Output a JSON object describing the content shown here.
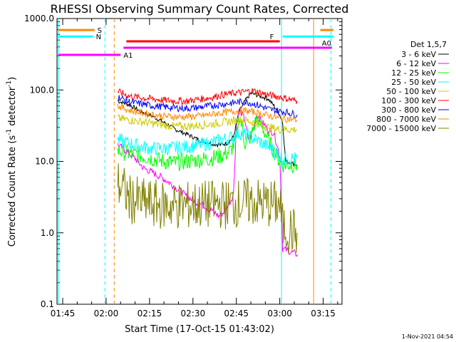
{
  "chart_data": {
    "type": "line",
    "title": "RHESSI Observing Summary Count Rates, Corrected",
    "ylabel_main": "Corrected Count Rate (s",
    "ylabel_sup1": "-1",
    "ylabel_mid": " detector",
    "ylabel_sup2": "-1",
    "ylabel_end": ")",
    "xlabel": "Start Time (17-Oct-15 01:43:02)",
    "footer_date": "1-Nov-2021 04:54",
    "y_scale": "log",
    "ylim": [
      0.1,
      1000
    ],
    "x_unit": "minutes after 01:40",
    "xlim": [
      3.03,
      101.5
    ],
    "ytick_labels": [
      "0.1",
      "1.0",
      "10.0",
      "100.0",
      "1000.0"
    ],
    "ytick_values": [
      0.1,
      1,
      10,
      100,
      1000
    ],
    "xtick_labels": [
      "01:45",
      "02:00",
      "02:15",
      "02:30",
      "02:45",
      "03:00",
      "03:15"
    ],
    "xtick_values": [
      5,
      20,
      35,
      50,
      65,
      80,
      95
    ],
    "legend_title": "Det 1,5,7",
    "series": [
      {
        "name": "3 - 6 keV",
        "color": "#000000",
        "points": [
          [
            24,
            70
          ],
          [
            28,
            62
          ],
          [
            32,
            50
          ],
          [
            36,
            43
          ],
          [
            40,
            35
          ],
          [
            44,
            28
          ],
          [
            48,
            24
          ],
          [
            52,
            20
          ],
          [
            56,
            18
          ],
          [
            59,
            17
          ],
          [
            62,
            18
          ],
          [
            64,
            22
          ],
          [
            66,
            50
          ],
          [
            68,
            70
          ],
          [
            70,
            90
          ],
          [
            72,
            85
          ],
          [
            74,
            80
          ],
          [
            76,
            75
          ],
          [
            78,
            60
          ],
          [
            80,
            45
          ],
          [
            81,
            35
          ],
          [
            82,
            10
          ],
          [
            86,
            9
          ]
        ]
      },
      {
        "name": "6 - 12 keV",
        "color": "#ff00ff",
        "points": [
          [
            24,
            17
          ],
          [
            27,
            14
          ],
          [
            30,
            11
          ],
          [
            33,
            8
          ],
          [
            36,
            7
          ],
          [
            39,
            6
          ],
          [
            42,
            5
          ],
          [
            45,
            4
          ],
          [
            48,
            3.2
          ],
          [
            51,
            2.7
          ],
          [
            54,
            2.4
          ],
          [
            57,
            2.0
          ],
          [
            59,
            1.7
          ],
          [
            61,
            2.0
          ],
          [
            62,
            2.4
          ],
          [
            63,
            2.8
          ],
          [
            64,
            3.5
          ],
          [
            65,
            30
          ],
          [
            66,
            55
          ],
          [
            67,
            45
          ],
          [
            68,
            38
          ],
          [
            69,
            20
          ],
          [
            70,
            22
          ],
          [
            72,
            45
          ],
          [
            74,
            35
          ],
          [
            76,
            28
          ],
          [
            78,
            25
          ],
          [
            80,
            12
          ],
          [
            81,
            0.6
          ],
          [
            86,
            0.5
          ]
        ]
      },
      {
        "name": "12 - 25 keV",
        "color": "#00ff00",
        "points": [
          [
            24,
            14
          ],
          [
            28,
            13
          ],
          [
            32,
            12
          ],
          [
            36,
            11
          ],
          [
            40,
            10
          ],
          [
            44,
            9.5
          ],
          [
            48,
            10
          ],
          [
            52,
            10.5
          ],
          [
            56,
            11
          ],
          [
            60,
            12
          ],
          [
            63,
            14
          ],
          [
            65,
            20
          ],
          [
            66,
            45
          ],
          [
            67,
            30
          ],
          [
            68,
            18
          ],
          [
            70,
            22
          ],
          [
            72,
            40
          ],
          [
            74,
            30
          ],
          [
            76,
            20
          ],
          [
            78,
            14
          ],
          [
            80,
            10
          ],
          [
            81,
            9
          ],
          [
            86,
            9
          ]
        ]
      },
      {
        "name": "25 - 50 keV",
        "color": "#00ffff",
        "points": [
          [
            24,
            20
          ],
          [
            28,
            18
          ],
          [
            32,
            16
          ],
          [
            36,
            15
          ],
          [
            40,
            15
          ],
          [
            44,
            15.5
          ],
          [
            48,
            16
          ],
          [
            52,
            17
          ],
          [
            56,
            18
          ],
          [
            60,
            20
          ],
          [
            64,
            22
          ],
          [
            66,
            25
          ],
          [
            68,
            24
          ],
          [
            70,
            22
          ],
          [
            72,
            20
          ],
          [
            74,
            18
          ],
          [
            76,
            16
          ],
          [
            78,
            14
          ],
          [
            80,
            12
          ],
          [
            81,
            11
          ],
          [
            86,
            11
          ]
        ]
      },
      {
        "name": "50 - 100 keV",
        "color": "#cccc00",
        "points": [
          [
            24,
            40
          ],
          [
            28,
            38
          ],
          [
            32,
            36
          ],
          [
            36,
            34
          ],
          [
            40,
            32
          ],
          [
            44,
            31
          ],
          [
            48,
            31
          ],
          [
            52,
            32
          ],
          [
            56,
            33
          ],
          [
            60,
            35
          ],
          [
            64,
            37
          ],
          [
            66,
            38
          ],
          [
            68,
            38
          ],
          [
            70,
            36
          ],
          [
            72,
            34
          ],
          [
            74,
            32
          ],
          [
            76,
            30
          ],
          [
            78,
            29
          ],
          [
            80,
            28
          ],
          [
            81,
            28
          ],
          [
            86,
            28
          ]
        ]
      },
      {
        "name": "100 - 300 keV",
        "color": "#ff0000",
        "points": [
          [
            24,
            95
          ],
          [
            28,
            82
          ],
          [
            32,
            78
          ],
          [
            36,
            75
          ],
          [
            40,
            72
          ],
          [
            44,
            70
          ],
          [
            48,
            70
          ],
          [
            52,
            74
          ],
          [
            56,
            78
          ],
          [
            60,
            85
          ],
          [
            64,
            90
          ],
          [
            66,
            92
          ],
          [
            68,
            94
          ],
          [
            70,
            98
          ],
          [
            72,
            95
          ],
          [
            74,
            90
          ],
          [
            76,
            85
          ],
          [
            78,
            82
          ],
          [
            80,
            80
          ],
          [
            81,
            78
          ],
          [
            86,
            70
          ]
        ]
      },
      {
        "name": "300 - 800 keV",
        "color": "#0000ff",
        "points": [
          [
            24,
            80
          ],
          [
            28,
            68
          ],
          [
            32,
            64
          ],
          [
            36,
            60
          ],
          [
            40,
            58
          ],
          [
            44,
            56
          ],
          [
            48,
            55
          ],
          [
            52,
            57
          ],
          [
            56,
            60
          ],
          [
            60,
            63
          ],
          [
            64,
            66
          ],
          [
            66,
            68
          ],
          [
            68,
            68
          ],
          [
            70,
            66
          ],
          [
            72,
            62
          ],
          [
            74,
            58
          ],
          [
            76,
            54
          ],
          [
            78,
            52
          ],
          [
            80,
            50
          ],
          [
            81,
            50
          ],
          [
            86,
            45
          ]
        ]
      },
      {
        "name": "800 - 7000 keV",
        "color": "#ff8800",
        "points": [
          [
            24,
            60
          ],
          [
            28,
            52
          ],
          [
            32,
            48
          ],
          [
            36,
            45
          ],
          [
            40,
            43
          ],
          [
            44,
            42
          ],
          [
            48,
            42
          ],
          [
            52,
            43
          ],
          [
            56,
            45
          ],
          [
            60,
            48
          ],
          [
            64,
            50
          ],
          [
            66,
            51
          ],
          [
            68,
            51
          ],
          [
            70,
            50
          ],
          [
            72,
            48
          ],
          [
            74,
            46
          ],
          [
            76,
            44
          ],
          [
            78,
            42
          ],
          [
            80,
            40
          ],
          [
            81,
            40
          ],
          [
            86,
            38
          ]
        ]
      },
      {
        "name": "7000 - 15000 keV",
        "color": "#808000",
        "points": [
          [
            24,
            5
          ],
          [
            26,
            4
          ],
          [
            28,
            3
          ],
          [
            30,
            2.8
          ],
          [
            34,
            2.6
          ],
          [
            40,
            2.4
          ],
          [
            48,
            2.4
          ],
          [
            56,
            2.5
          ],
          [
            62,
            2.5
          ],
          [
            66,
            2.6
          ],
          [
            70,
            2.7
          ],
          [
            74,
            2.6
          ],
          [
            78,
            2.5
          ],
          [
            80,
            2.5
          ],
          [
            81,
            1.2
          ],
          [
            86,
            1.0
          ]
        ]
      }
    ],
    "attenuator_bars": [
      {
        "label": "S",
        "color": "#ff8800",
        "x": [
          3.5,
          16
        ],
        "y": 690
      },
      {
        "label": "N",
        "color": "#00ffff",
        "x": [
          3.5,
          15.5
        ],
        "y": 560
      },
      {
        "label": "F",
        "color": "#ff0000",
        "x": [
          27,
          80
        ],
        "y": 480
      },
      {
        "label": "A0",
        "color": "#ff00ff",
        "x": [
          26,
          98
        ],
        "y": 390
      },
      {
        "label": "A1",
        "color": "#ff00ff",
        "x": [
          3.5,
          25
        ],
        "y": 310
      }
    ]
  }
}
